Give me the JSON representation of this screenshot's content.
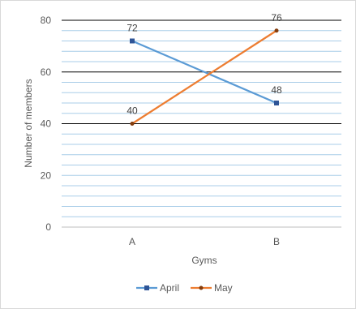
{
  "chart_data": {
    "type": "line",
    "title": "",
    "xlabel": "Gyms",
    "ylabel": "Number of members",
    "categories": [
      "A",
      "B"
    ],
    "ylim": [
      0,
      80
    ],
    "y_ticks": [
      0,
      20,
      40,
      60,
      80
    ],
    "major_gridlines": [
      40,
      60,
      80
    ],
    "minor_grid_step": 4,
    "grid": true,
    "legend_position": "bottom",
    "series": [
      {
        "name": "April",
        "values": [
          72,
          48
        ],
        "color": "#5b9bd5",
        "marker": "square"
      },
      {
        "name": "May",
        "values": [
          40,
          76
        ],
        "color": "#ed7d31",
        "marker": "circle"
      }
    ],
    "data_labels": [
      "72",
      "48",
      "40",
      "76"
    ],
    "colors": {
      "minor_grid": "#a9cde8",
      "major_grid": "#000000",
      "axis": "#bfbfbf"
    }
  }
}
